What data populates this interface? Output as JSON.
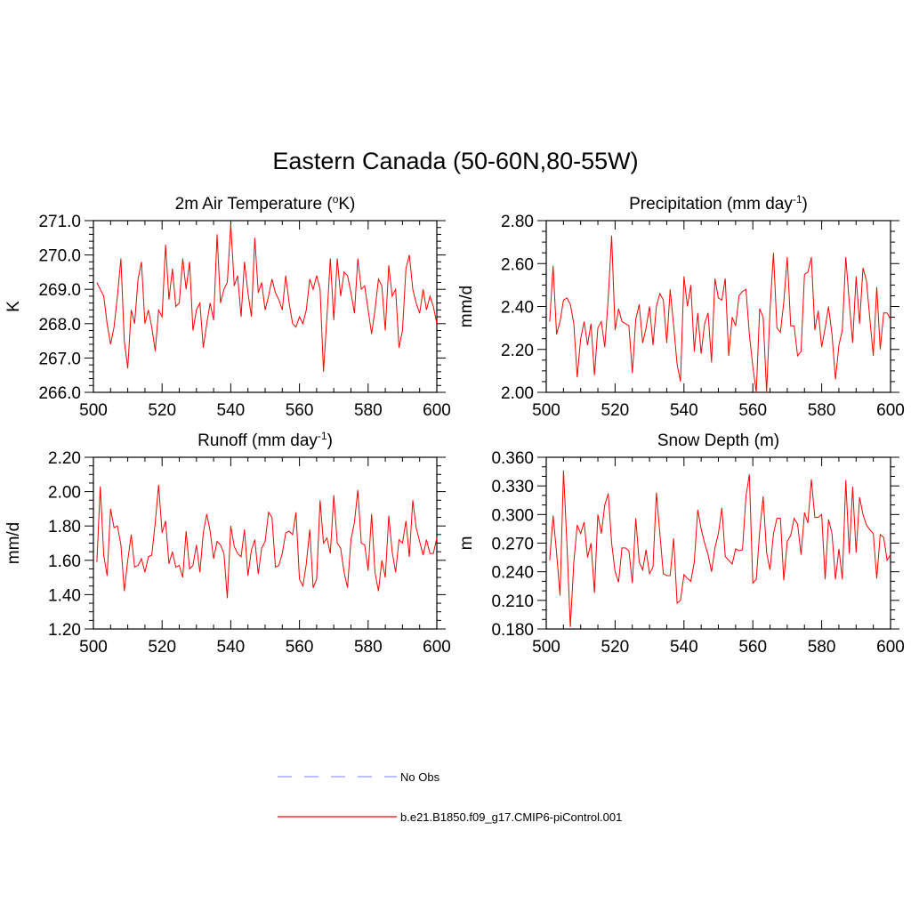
{
  "title": "Eastern Canada (50-60N,80-55W)",
  "colors": {
    "model": "#ff0000",
    "obs": "#9999ff",
    "axis": "#000000"
  },
  "legend": {
    "obs_label": "No Obs",
    "model_label": "b.e21.B1850.f09_g17.CMIP6-piControl.001"
  },
  "chart_data": [
    {
      "type": "line",
      "title": "2m Air Temperature (",
      "title_sup": "o",
      "title_after": "K)",
      "ylabel": "K",
      "xlim": [
        500,
        600
      ],
      "ylim": [
        266.0,
        271.0
      ],
      "xticks": [
        500,
        520,
        540,
        560,
        580,
        600
      ],
      "xtick_labels": [
        "500",
        "520",
        "540",
        "560",
        "580",
        "600"
      ],
      "yticks": [
        266.0,
        267.0,
        268.0,
        269.0,
        270.0,
        271.0
      ],
      "ytick_labels": [
        "266.0",
        "267.0",
        "268.0",
        "269.0",
        "270.0",
        "271.0"
      ],
      "yminor": 5,
      "series": [
        {
          "name": "b.e21.B1850.f09_g17.CMIP6-piControl.001",
          "x_start": 501,
          "x_step": 1,
          "values": [
            269.2,
            269.0,
            268.8,
            268.0,
            267.4,
            267.9,
            268.8,
            269.9,
            267.5,
            266.7,
            268.4,
            268.0,
            269.3,
            269.8,
            268.0,
            268.4,
            267.9,
            267.2,
            268.4,
            268.2,
            270.3,
            268.7,
            269.6,
            268.5,
            268.6,
            269.9,
            269.0,
            269.8,
            267.8,
            268.4,
            268.6,
            267.3,
            268.0,
            268.6,
            268.1,
            270.6,
            268.6,
            269.0,
            269.2,
            270.9,
            269.1,
            269.4,
            268.2,
            269.8,
            268.9,
            268.2,
            270.5,
            268.9,
            269.2,
            268.4,
            268.8,
            269.3,
            268.9,
            268.7,
            268.4,
            269.4,
            268.6,
            268.0,
            267.9,
            268.2,
            268.0,
            268.4,
            269.3,
            269.0,
            269.4,
            269.0,
            266.6,
            268.2,
            269.9,
            268.1,
            269.9,
            268.8,
            269.5,
            269.4,
            268.9,
            268.3,
            269.9,
            269.0,
            269.1,
            268.4,
            267.7,
            268.4,
            269.3,
            269.1,
            267.8,
            269.7,
            268.8,
            269.0,
            267.3,
            267.8,
            269.6,
            270.0,
            269.0,
            268.6,
            268.3,
            269.0,
            268.4,
            268.8,
            268.5,
            268.0
          ]
        }
      ]
    },
    {
      "type": "line",
      "title": "Precipitation (mm day",
      "title_sup": "-1",
      "title_after": ")",
      "ylabel": "mm/d",
      "xlim": [
        500,
        600
      ],
      "ylim": [
        2.0,
        2.8
      ],
      "xticks": [
        500,
        520,
        540,
        560,
        580,
        600
      ],
      "xtick_labels": [
        "500",
        "520",
        "540",
        "560",
        "580",
        "600"
      ],
      "yticks": [
        2.0,
        2.2,
        2.4,
        2.6,
        2.8
      ],
      "ytick_labels": [
        "2.00",
        "2.20",
        "2.40",
        "2.60",
        "2.80"
      ],
      "yminor": 4,
      "series": [
        {
          "name": "b.e21.B1850.f09_g17.CMIP6-piControl.001",
          "x_start": 501,
          "x_step": 1,
          "values": [
            2.33,
            2.59,
            2.27,
            2.33,
            2.43,
            2.44,
            2.41,
            2.32,
            2.07,
            2.25,
            2.33,
            2.22,
            2.32,
            2.08,
            2.3,
            2.33,
            2.21,
            2.44,
            2.73,
            2.29,
            2.39,
            2.33,
            2.32,
            2.31,
            2.09,
            2.34,
            2.41,
            2.23,
            2.3,
            2.4,
            2.22,
            2.4,
            2.46,
            2.43,
            2.23,
            2.48,
            2.31,
            2.13,
            2.05,
            2.54,
            2.4,
            2.5,
            2.19,
            2.37,
            2.18,
            2.32,
            2.37,
            2.14,
            2.53,
            2.44,
            2.43,
            2.53,
            2.17,
            2.35,
            2.31,
            2.45,
            2.47,
            2.48,
            2.27,
            2.12,
            2.0,
            2.39,
            2.35,
            2.0,
            2.38,
            2.65,
            2.3,
            2.28,
            2.42,
            2.63,
            2.31,
            2.31,
            2.17,
            2.19,
            2.55,
            2.56,
            2.63,
            2.29,
            2.38,
            2.21,
            2.3,
            2.4,
            2.27,
            2.06,
            2.22,
            2.29,
            2.63,
            2.42,
            2.23,
            2.54,
            2.32,
            2.58,
            2.52,
            2.34,
            2.17,
            2.49,
            2.2,
            2.37,
            2.37,
            2.34
          ]
        }
      ]
    },
    {
      "type": "line",
      "title": "Runoff (mm day",
      "title_sup": "-1",
      "title_after": ")",
      "ylabel": "mm/d",
      "xlim": [
        500,
        600
      ],
      "ylim": [
        1.2,
        2.2
      ],
      "xticks": [
        500,
        520,
        540,
        560,
        580,
        600
      ],
      "xtick_labels": [
        "500",
        "520",
        "540",
        "560",
        "580",
        "600"
      ],
      "yticks": [
        1.2,
        1.4,
        1.6,
        1.8,
        2.0,
        2.2
      ],
      "ytick_labels": [
        "1.20",
        "1.40",
        "1.60",
        "1.80",
        "2.00",
        "2.20"
      ],
      "yminor": 4,
      "series": [
        {
          "name": "b.e21.B1850.f09_g17.CMIP6-piControl.001",
          "x_start": 501,
          "x_step": 1,
          "values": [
            1.59,
            2.03,
            1.63,
            1.51,
            1.9,
            1.79,
            1.8,
            1.69,
            1.42,
            1.6,
            1.75,
            1.56,
            1.57,
            1.61,
            1.53,
            1.62,
            1.63,
            1.82,
            2.04,
            1.76,
            1.83,
            1.58,
            1.65,
            1.56,
            1.57,
            1.5,
            1.77,
            1.55,
            1.57,
            1.69,
            1.53,
            1.76,
            1.87,
            1.77,
            1.61,
            1.71,
            1.69,
            1.64,
            1.38,
            1.8,
            1.68,
            1.64,
            1.62,
            1.78,
            1.51,
            1.66,
            1.72,
            1.52,
            1.67,
            1.71,
            1.88,
            1.85,
            1.56,
            1.57,
            1.64,
            1.76,
            1.77,
            1.75,
            1.88,
            1.49,
            1.45,
            1.58,
            1.78,
            1.44,
            1.49,
            1.95,
            1.7,
            1.73,
            1.64,
            1.98,
            1.7,
            1.67,
            1.53,
            1.44,
            1.72,
            1.82,
            2.01,
            1.7,
            1.69,
            1.54,
            1.87,
            1.53,
            1.42,
            1.6,
            1.5,
            1.86,
            1.65,
            1.53,
            1.72,
            1.7,
            1.83,
            1.62,
            1.95,
            1.79,
            1.71,
            1.63,
            1.72,
            1.64,
            1.64,
            1.73
          ]
        }
      ]
    },
    {
      "type": "line",
      "title": "Snow Depth (m)",
      "title_sup": "",
      "title_after": "",
      "ylabel": "m",
      "xlim": [
        500,
        600
      ],
      "ylim": [
        0.18,
        0.36
      ],
      "xticks": [
        500,
        520,
        540,
        560,
        580,
        600
      ],
      "xtick_labels": [
        "500",
        "520",
        "540",
        "560",
        "580",
        "600"
      ],
      "yticks": [
        0.18,
        0.21,
        0.24,
        0.27,
        0.3,
        0.33,
        0.36
      ],
      "ytick_labels": [
        "0.180",
        "0.210",
        "0.240",
        "0.270",
        "0.300",
        "0.330",
        "0.360"
      ],
      "yminor": 3,
      "series": [
        {
          "name": "b.e21.B1850.f09_g17.CMIP6-piControl.001",
          "x_start": 501,
          "x_step": 1,
          "values": [
            0.252,
            0.299,
            0.26,
            0.215,
            0.346,
            0.27,
            0.182,
            0.25,
            0.289,
            0.28,
            0.292,
            0.255,
            0.27,
            0.218,
            0.3,
            0.28,
            0.31,
            0.322,
            0.27,
            0.24,
            0.229,
            0.265,
            0.265,
            0.262,
            0.228,
            0.296,
            0.25,
            0.242,
            0.263,
            0.238,
            0.245,
            0.323,
            0.28,
            0.238,
            0.236,
            0.236,
            0.275,
            0.207,
            0.21,
            0.237,
            0.233,
            0.23,
            0.25,
            0.305,
            0.285,
            0.27,
            0.258,
            0.24,
            0.265,
            0.28,
            0.307,
            0.256,
            0.252,
            0.248,
            0.264,
            0.262,
            0.263,
            0.319,
            0.342,
            0.228,
            0.232,
            0.282,
            0.319,
            0.26,
            0.242,
            0.28,
            0.296,
            0.296,
            0.231,
            0.272,
            0.278,
            0.296,
            0.29,
            0.258,
            0.302,
            0.291,
            0.337,
            0.297,
            0.297,
            0.3,
            0.232,
            0.295,
            0.28,
            0.232,
            0.264,
            0.232,
            0.336,
            0.259,
            0.329,
            0.26,
            0.318,
            0.3,
            0.289,
            0.284,
            0.28,
            0.233,
            0.279,
            0.276,
            0.252,
            0.258
          ]
        }
      ]
    }
  ]
}
